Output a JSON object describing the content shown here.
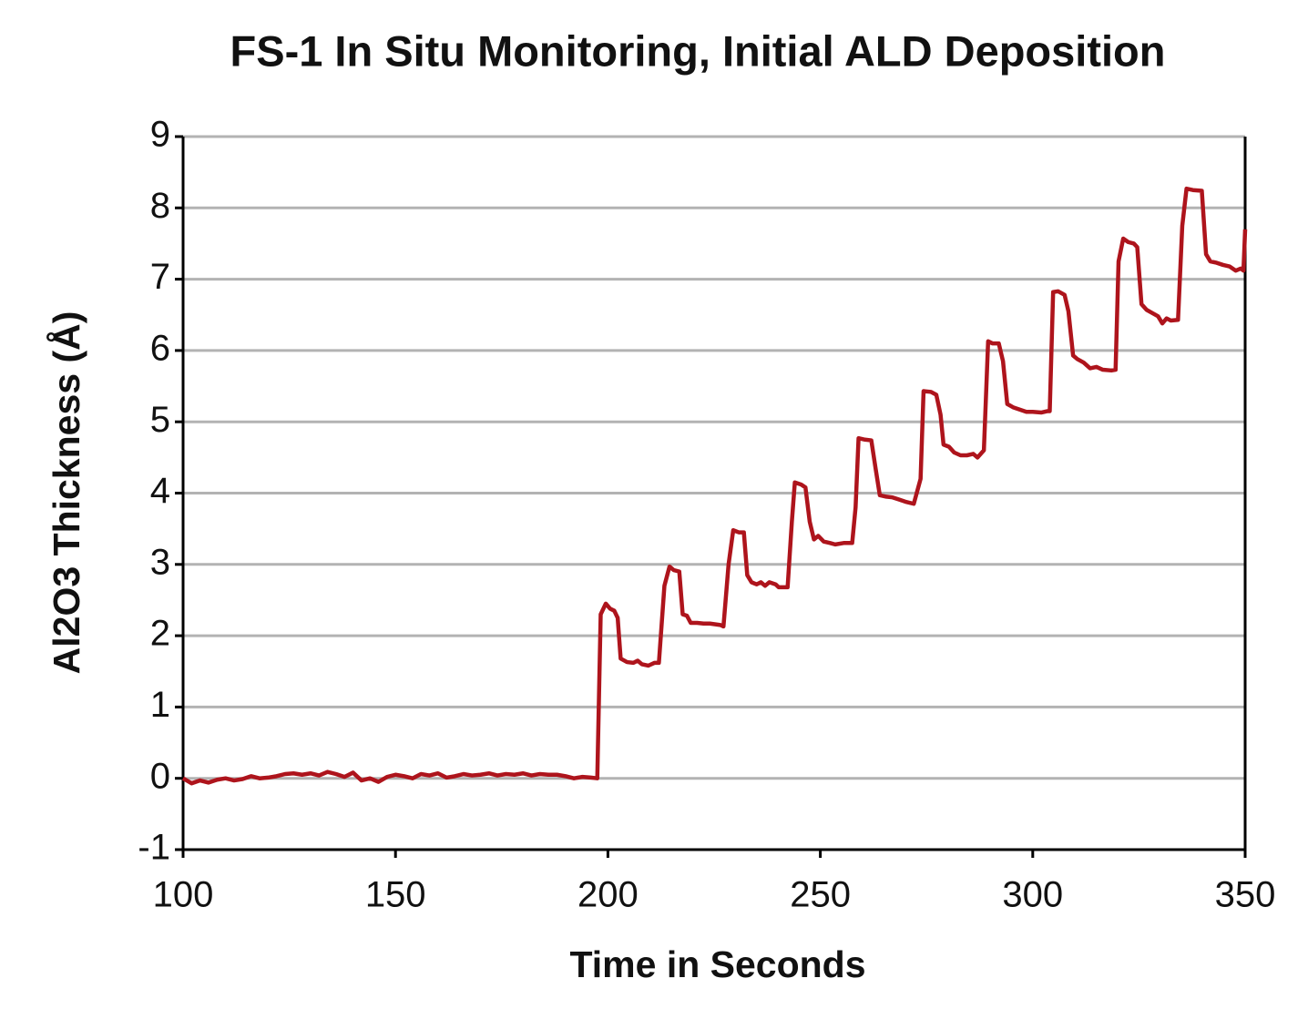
{
  "chart_data": {
    "type": "line",
    "title": "FS-1 In Situ Monitoring, Initial ALD Deposition",
    "x_label": "Time in Seconds",
    "y_label": "Al2O3 Thickness (Å)",
    "color": "#ae141c",
    "grid": true,
    "xlim": [
      100,
      350
    ],
    "xticks": [
      100,
      150,
      200,
      250,
      300,
      350
    ],
    "ylim": [
      -1,
      9
    ],
    "yticks": [
      -1,
      0,
      1,
      2,
      3,
      4,
      5,
      6,
      7,
      8,
      9
    ],
    "x": [
      100,
      102,
      104,
      106,
      108,
      110,
      112,
      114,
      116,
      118,
      120,
      122,
      124,
      126,
      128,
      130,
      132,
      134,
      136,
      138,
      140,
      142,
      144,
      146,
      148,
      150,
      152,
      154,
      156,
      158,
      160,
      162,
      164,
      166,
      168,
      170,
      172,
      174,
      176,
      178,
      180,
      182,
      184,
      186,
      188,
      190,
      192,
      194,
      196,
      197.5,
      198.3,
      199.5,
      200.5,
      201.5,
      202.3,
      203,
      204.5,
      206,
      207,
      208,
      209.5,
      211,
      212,
      213.3,
      214.5,
      215.5,
      216.8,
      217.6,
      218.6,
      219.5,
      221,
      222.5,
      224,
      226.5,
      227.2,
      228.4,
      229.5,
      230.8,
      232,
      232.8,
      233.8,
      235,
      236,
      237,
      238,
      239.5,
      240.2,
      242.3,
      243.3,
      244,
      245.5,
      246.5,
      247.5,
      248.5,
      249.5,
      250.8,
      252.3,
      253.5,
      255.5,
      257.5,
      258.3,
      259,
      260.5,
      262,
      263,
      264,
      265.5,
      267,
      268.5,
      270,
      272,
      273.6,
      274.3,
      276,
      277.3,
      278.3,
      279,
      280.3,
      281.5,
      283,
      284.5,
      286,
      287,
      288.5,
      289.5,
      290.5,
      292,
      293,
      294,
      295.5,
      297,
      298.5,
      300,
      302,
      303.5,
      304.0,
      304.8,
      306,
      307.5,
      308.4,
      309.5,
      310.5,
      312,
      313.5,
      315,
      316.5,
      318.5,
      319.5,
      320.2,
      321.3,
      322.5,
      323.8,
      324.6,
      325.6,
      326.8,
      328.3,
      329.5,
      330.5,
      331.5,
      332.5,
      334.2,
      335.2,
      336.2,
      337.7,
      339.8,
      340.8,
      341.8,
      343.3,
      344.8,
      346.3,
      347.8,
      349,
      349.6,
      350
    ],
    "values": [
      0,
      -0.07,
      -0.03,
      -0.06,
      -0.02,
      0,
      -0.03,
      -0.01,
      0.03,
      0,
      0.01,
      0.03,
      0.06,
      0.07,
      0.05,
      0.07,
      0.04,
      0.09,
      0.06,
      0.02,
      0.08,
      -0.03,
      0,
      -0.05,
      0.02,
      0.05,
      0.03,
      0,
      0.06,
      0.04,
      0.07,
      0.01,
      0.03,
      0.06,
      0.04,
      0.05,
      0.07,
      0.04,
      0.06,
      0.05,
      0.07,
      0.04,
      0.06,
      0.05,
      0.05,
      0.03,
      0,
      0.02,
      0.01,
      0,
      2.3,
      2.45,
      2.38,
      2.35,
      2.25,
      1.68,
      1.63,
      1.62,
      1.65,
      1.6,
      1.58,
      1.62,
      1.62,
      2.7,
      2.97,
      2.92,
      2.9,
      2.3,
      2.28,
      2.18,
      2.18,
      2.17,
      2.17,
      2.15,
      2.13,
      3.0,
      3.48,
      3.45,
      3.45,
      2.85,
      2.75,
      2.72,
      2.75,
      2.7,
      2.75,
      2.72,
      2.68,
      2.68,
      3.6,
      4.15,
      4.12,
      4.08,
      3.6,
      3.35,
      3.4,
      3.32,
      3.3,
      3.28,
      3.3,
      3.3,
      3.8,
      4.77,
      4.75,
      4.74,
      4.35,
      3.97,
      3.95,
      3.94,
      3.91,
      3.88,
      3.85,
      4.2,
      5.43,
      5.42,
      5.38,
      5.1,
      4.68,
      4.65,
      4.57,
      4.53,
      4.53,
      4.55,
      4.5,
      4.6,
      6.13,
      6.1,
      6.1,
      5.85,
      5.25,
      5.2,
      5.17,
      5.14,
      5.14,
      5.13,
      5.15,
      5.15,
      6.82,
      6.83,
      6.78,
      6.55,
      5.93,
      5.88,
      5.83,
      5.75,
      5.77,
      5.73,
      5.72,
      5.73,
      7.25,
      7.57,
      7.52,
      7.5,
      7.45,
      6.65,
      6.57,
      6.52,
      6.48,
      6.38,
      6.45,
      6.42,
      6.43,
      7.75,
      8.27,
      8.25,
      8.24,
      7.35,
      7.25,
      7.23,
      7.2,
      7.18,
      7.12,
      7.15,
      7.12,
      7.7
    ]
  }
}
